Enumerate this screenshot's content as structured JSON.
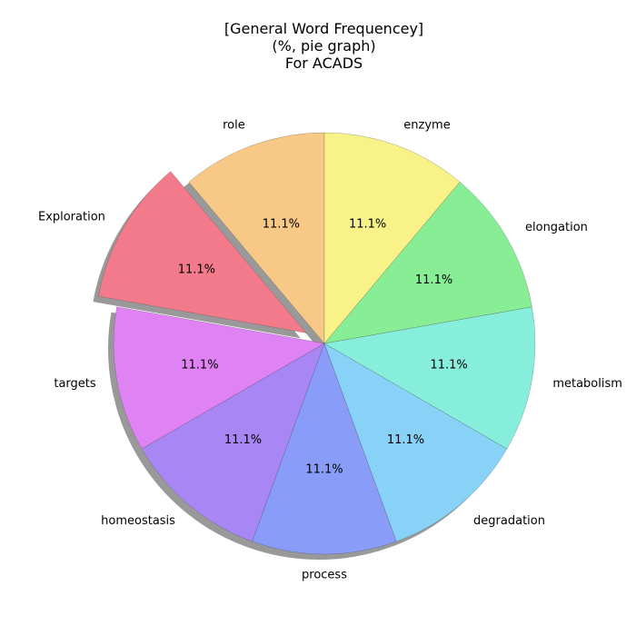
{
  "chart_data": {
    "type": "pie",
    "title": "[General Word Frequencey]",
    "subtitle": "(%, pie graph)",
    "subtitle2": "For ACADS",
    "labels": [
      "role",
      "Exploration",
      "targets",
      "homeostasis",
      "process",
      "degradation",
      "metabolism",
      "elongation",
      "enzyme"
    ],
    "values": [
      11.1,
      11.1,
      11.1,
      11.1,
      11.1,
      11.1,
      11.1,
      11.1,
      11.1
    ],
    "value_labels": [
      "11.1%",
      "11.1%",
      "11.1%",
      "11.1%",
      "11.1%",
      "11.1%",
      "11.1%",
      "11.1%",
      "11.1%"
    ],
    "exploded": [
      "Exploration"
    ],
    "shadow": true,
    "colors": [
      "#f8c886",
      "#f27a8a",
      "#de82f4",
      "#a886f4",
      "#889cf8",
      "#88d2f8",
      "#88eedc",
      "#88ee96",
      "#f8f288"
    ]
  }
}
